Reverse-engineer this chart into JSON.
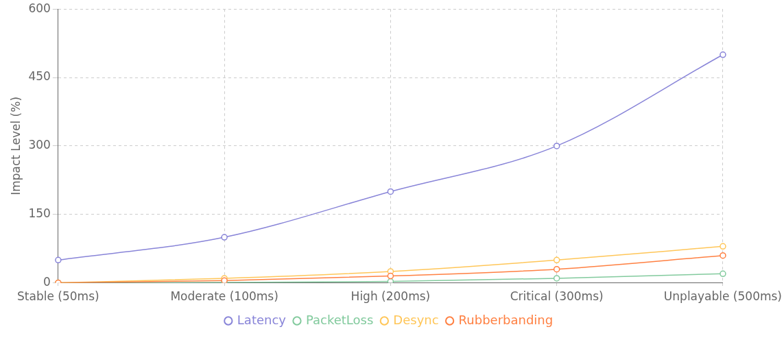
{
  "chart_data": {
    "type": "line",
    "ylabel": "Impact Level (%)",
    "categories": [
      "Stable (50ms)",
      "Moderate (100ms)",
      "High (200ms)",
      "Critical (300ms)",
      "Unplayable (500ms)"
    ],
    "series": [
      {
        "name": "Latency",
        "color": "#8884d8",
        "values": [
          50,
          100,
          200,
          300,
          500
        ]
      },
      {
        "name": "PacketLoss",
        "color": "#82ca9d",
        "values": [
          0,
          1,
          3,
          10,
          20
        ]
      },
      {
        "name": "Desync",
        "color": "#ffc658",
        "values": [
          0,
          10,
          25,
          50,
          80
        ]
      },
      {
        "name": "Rubberbanding",
        "color": "#ff8042",
        "values": [
          0,
          5,
          15,
          30,
          60
        ]
      }
    ],
    "ylim": [
      0,
      600
    ],
    "yticks": [
      0,
      150,
      300,
      450,
      600
    ],
    "grid": true,
    "legend": "bottom",
    "marker": "circle",
    "line_style": "solid"
  }
}
